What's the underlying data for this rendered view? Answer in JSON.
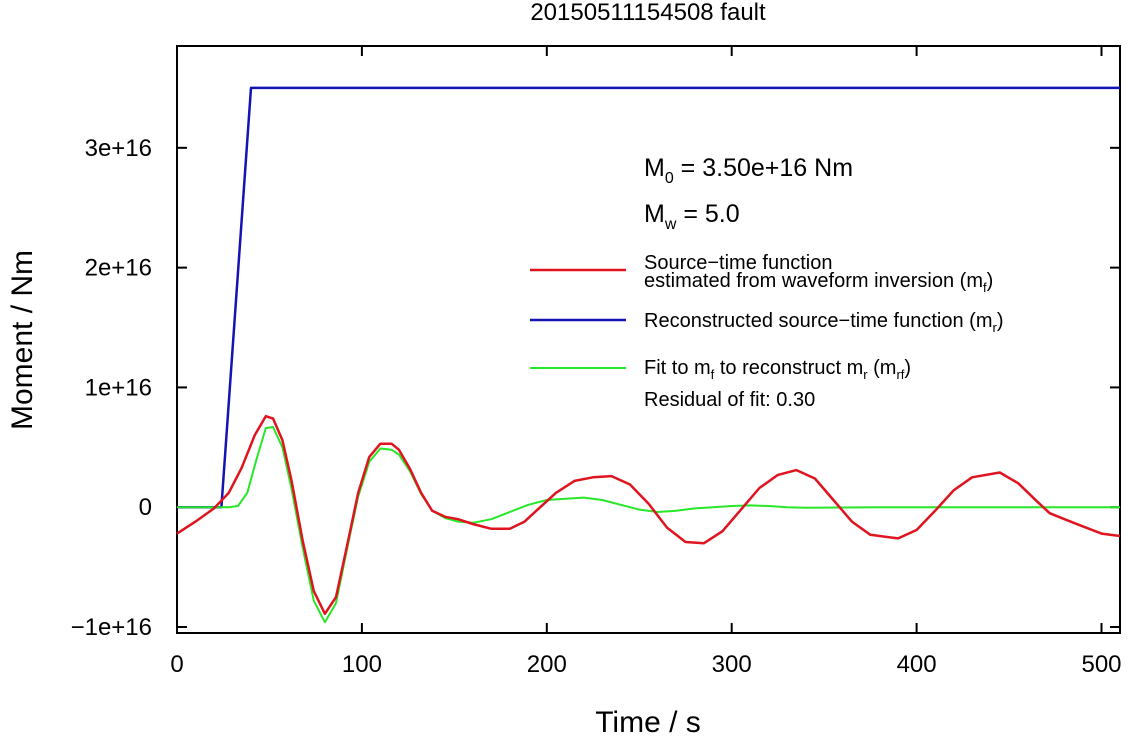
{
  "chart_data": {
    "type": "line",
    "title": "20150511154508 fault",
    "xlabel": "Time / s",
    "ylabel": "Moment / Nm",
    "xlim": [
      0,
      510
    ],
    "ylim": [
      -1.05e+16,
      3.85e+16
    ],
    "x_ticks": [
      0,
      100,
      200,
      300,
      400,
      500
    ],
    "y_ticks": [
      -1e+16,
      0,
      1e+16,
      2e+16,
      3e+16
    ],
    "x_tick_labels": [
      "0",
      "100",
      "200",
      "300",
      "400",
      "500"
    ],
    "y_tick_labels": [
      "−1e+16",
      "0",
      "1e+16",
      "2e+16",
      "3e+16"
    ],
    "grid": false,
    "legend_position": "right",
    "annotations": {
      "m0_symbol": "M",
      "m0_sub": "0",
      "m0_value": " = 3.50e+16 Nm",
      "mw_symbol": "M",
      "mw_sub": "w",
      "mw_value": " = 5.0",
      "residual": "Residual of fit: 0.30"
    },
    "legend": [
      {
        "key": "mf",
        "color": "#e0141e",
        "line1": "Source−time function",
        "line2_pre": "estimated from waveform inversion (m",
        "line2_sub": "f",
        "line2_post": ")"
      },
      {
        "key": "mr",
        "color": "#1414b4",
        "line1_pre": "Reconstructed source−time function (m",
        "line1_sub": "r",
        "line1_post": ")"
      },
      {
        "key": "mrf",
        "color": "#28e628",
        "pre1": "Fit to m",
        "sub1": "f",
        "mid": " to reconstruct m",
        "sub2": "r",
        "mid2": " (m",
        "sub3": "rf",
        "post": ")"
      }
    ],
    "series": [
      {
        "key": "mf",
        "color": "#e0141e",
        "x": [
          0,
          10,
          20,
          28,
          35,
          42,
          48,
          52,
          57,
          62,
          68,
          74,
          80,
          86,
          92,
          98,
          104,
          110,
          116,
          120,
          126,
          132,
          138,
          145,
          152,
          160,
          170,
          180,
          188,
          195,
          205,
          215,
          225,
          235,
          245,
          255,
          265,
          275,
          285,
          295,
          305,
          315,
          325,
          335,
          345,
          355,
          365,
          375,
          390,
          400,
          410,
          420,
          430,
          445,
          455,
          465,
          472,
          480,
          490,
          500,
          510
        ],
        "y": [
          -2200000000000000.0,
          -1200000000000000.0,
          -100000000000000.0,
          1200000000000000.0,
          3300000000000000.0,
          6000000000000000.0,
          7600000000000000.0,
          7400000000000000.0,
          5600000000000000.0,
          2200000000000000.0,
          -2800000000000000.0,
          -7000000000000000.0,
          -8900000000000000.0,
          -7500000000000000.0,
          -3200000000000000.0,
          1200000000000000.0,
          4200000000000000.0,
          5300000000000000.0,
          5300000000000000.0,
          4800000000000000.0,
          3200000000000000.0,
          1200000000000000.0,
          -300000000000000.0,
          -800000000000000.0,
          -1000000000000000.0,
          -1400000000000000.0,
          -1800000000000000.0,
          -1800000000000000.0,
          -1200000000000000.0,
          -200000000000000.0,
          1200000000000000.0,
          2200000000000000.0,
          2500000000000000.0,
          2600000000000000.0,
          1900000000000000.0,
          300000000000000.0,
          -1700000000000000.0,
          -2900000000000000.0,
          -3000000000000000.0,
          -2000000000000000.0,
          -200000000000000.0,
          1600000000000000.0,
          2700000000000000.0,
          3100000000000000.0,
          2400000000000000.0,
          600000000000000.0,
          -1200000000000000.0,
          -2300000000000000.0,
          -2600000000000000.0,
          -1900000000000000.0,
          -300000000000000.0,
          1400000000000000.0,
          2500000000000000.0,
          2900000000000000.0,
          2000000000000000.0,
          500000000000000.0,
          -500000000000000.0,
          -1000000000000000.0,
          -1600000000000000.0,
          -2200000000000000.0,
          -2400000000000000.0
        ]
      },
      {
        "key": "mr",
        "color": "#1414b4",
        "x": [
          0,
          24,
          40,
          510
        ],
        "y": [
          0,
          0,
          3.5e+16,
          3.5e+16
        ]
      },
      {
        "key": "mrf",
        "color": "#28e628",
        "x": [
          0,
          20,
          28,
          33,
          38,
          43,
          48,
          52,
          57,
          62,
          68,
          74,
          80,
          86,
          92,
          98,
          104,
          110,
          116,
          120,
          126,
          132,
          138,
          145,
          152,
          160,
          170,
          180,
          190,
          200,
          210,
          220,
          230,
          240,
          250,
          260,
          270,
          280,
          290,
          300,
          310,
          320,
          330,
          340,
          360,
          380,
          400,
          420,
          440,
          460,
          480,
          500,
          510
        ],
        "y": [
          0,
          0,
          0,
          100000000000000.0,
          1200000000000000.0,
          4000000000000000.0,
          6600000000000000.0,
          6700000000000000.0,
          5000000000000000.0,
          1500000000000000.0,
          -3400000000000000.0,
          -7800000000000000.0,
          -9600000000000000.0,
          -8000000000000000.0,
          -3500000000000000.0,
          900000000000000.0,
          3800000000000000.0,
          4900000000000000.0,
          4800000000000000.0,
          4400000000000000.0,
          3000000000000000.0,
          1100000000000000.0,
          -300000000000000.0,
          -900000000000000.0,
          -1200000000000000.0,
          -1300000000000000.0,
          -1000000000000000.0,
          -400000000000000.0,
          200000000000000.0,
          600000000000000.0,
          700000000000000.0,
          800000000000000.0,
          600000000000000.0,
          200000000000000.0,
          -200000000000000.0,
          -400000000000000.0,
          -300000000000000.0,
          -100000000000000.0,
          0,
          100000000000000.0,
          150000000000000.0,
          100000000000000.0,
          0,
          -40000000000000.0,
          -20000000000000.0,
          0,
          0,
          0,
          0,
          0,
          0,
          0,
          0
        ]
      }
    ]
  }
}
